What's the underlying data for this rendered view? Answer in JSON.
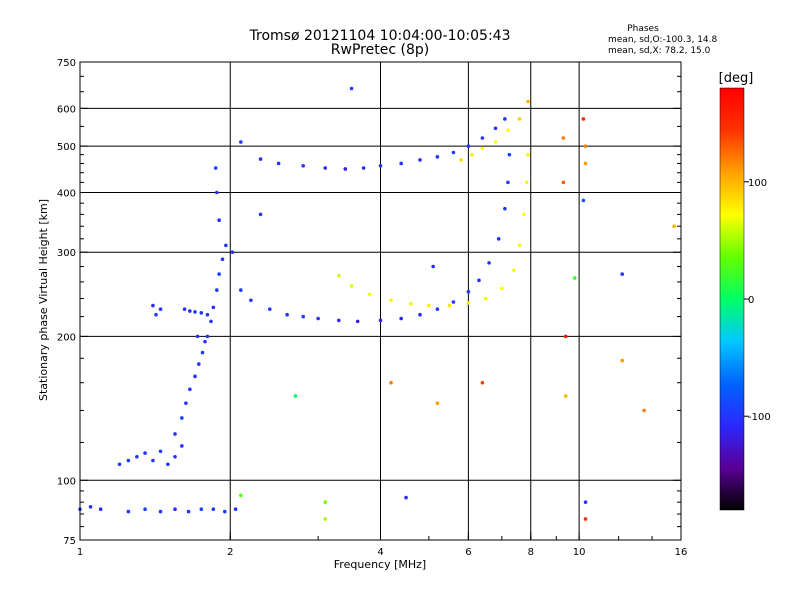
{
  "chart_data": {
    "type": "scatter",
    "title": "Tromsø 20121104 10:04:00-10:05:43",
    "subtitle": "RwPretec (8p)",
    "xlabel": "Frequency [MHz]",
    "ylabel": "Stationary phase Virtual Height [km]",
    "x_scale": "log",
    "y_scale": "log",
    "xlim": [
      1,
      16
    ],
    "ylim": [
      75,
      750
    ],
    "x_ticks": [
      1,
      2,
      4,
      6,
      8,
      10,
      16
    ],
    "x_tick_labels": [
      "1",
      "2",
      "4",
      "6",
      "8",
      "10",
      "16"
    ],
    "y_ticks": [
      75,
      100,
      200,
      300,
      400,
      500,
      600,
      750
    ],
    "y_tick_labels": [
      "75",
      "100",
      "200",
      "300",
      "400",
      "500",
      "600",
      "750"
    ],
    "grid": true,
    "phase_info": {
      "title": "Phases",
      "line1": "mean, sd,O:-100.3, 14.8",
      "line2": "mean, sd,X:  78.2, 15.0"
    },
    "colorbar": {
      "label": "[deg]",
      "range": [
        -180,
        180
      ],
      "ticks": [
        100,
        0,
        -100
      ],
      "tick_labels": [
        "100",
        "0",
        "-100"
      ],
      "colors": [
        "#000000",
        "#5a0096",
        "#2b28ff",
        "#0064ff",
        "#00c8ff",
        "#00ff64",
        "#64ff00",
        "#ffff00",
        "#ffa000",
        "#ff3200",
        "#ff0000"
      ]
    },
    "series": [
      {
        "points": [
          [
            1.0,
            87,
            -95
          ],
          [
            1.05,
            88,
            -100
          ],
          [
            1.1,
            87,
            -105
          ],
          [
            1.25,
            86,
            -100
          ],
          [
            1.35,
            87,
            -95
          ],
          [
            1.45,
            86,
            -100
          ],
          [
            1.55,
            87,
            -105
          ],
          [
            1.65,
            86,
            -100
          ],
          [
            1.75,
            87,
            -95
          ],
          [
            1.85,
            87,
            -100
          ],
          [
            1.95,
            86,
            -98
          ],
          [
            2.05,
            87,
            -102
          ],
          [
            1.2,
            108,
            -100
          ],
          [
            1.25,
            110,
            -95
          ],
          [
            1.3,
            112,
            -100
          ],
          [
            1.35,
            114,
            -105
          ],
          [
            1.4,
            110,
            -100
          ],
          [
            1.45,
            115,
            -95
          ],
          [
            1.5,
            108,
            -100
          ],
          [
            1.55,
            112,
            -100
          ],
          [
            1.6,
            118,
            -105
          ],
          [
            1.55,
            125,
            -100
          ],
          [
            1.6,
            135,
            -95
          ],
          [
            1.63,
            145,
            -100
          ],
          [
            1.66,
            155,
            -100
          ],
          [
            1.7,
            165,
            -105
          ],
          [
            1.73,
            175,
            -100
          ],
          [
            1.76,
            185,
            -95
          ],
          [
            1.8,
            200,
            -100
          ],
          [
            1.83,
            215,
            -100
          ],
          [
            1.85,
            230,
            -105
          ],
          [
            1.88,
            250,
            -100
          ],
          [
            1.9,
            270,
            -95
          ],
          [
            1.93,
            290,
            -100
          ],
          [
            1.96,
            310,
            -100
          ],
          [
            1.9,
            350,
            -105
          ],
          [
            1.88,
            400,
            -100
          ],
          [
            1.87,
            450,
            -95
          ],
          [
            1.62,
            228,
            -100
          ],
          [
            1.66,
            226,
            -105
          ],
          [
            1.7,
            225,
            -100
          ],
          [
            1.75,
            224,
            -100
          ],
          [
            1.8,
            222,
            -100
          ],
          [
            1.4,
            232,
            -105
          ],
          [
            1.45,
            228,
            -100
          ],
          [
            1.42,
            222,
            -95
          ],
          [
            1.72,
            200,
            -100
          ],
          [
            1.78,
            195,
            -105
          ],
          [
            2.02,
            300,
            -100
          ],
          [
            2.1,
            250,
            -100
          ],
          [
            2.2,
            238,
            -105
          ],
          [
            2.4,
            228,
            -100
          ],
          [
            2.6,
            222,
            -100
          ],
          [
            2.8,
            220,
            -95
          ],
          [
            3.0,
            218,
            -100
          ],
          [
            3.3,
            216,
            -110
          ],
          [
            3.6,
            215,
            -120
          ],
          [
            4.0,
            216,
            -115
          ],
          [
            4.4,
            218,
            -110
          ],
          [
            4.8,
            222,
            -105
          ],
          [
            5.2,
            228,
            -100
          ],
          [
            5.6,
            236,
            -100
          ],
          [
            6.0,
            248,
            -95
          ],
          [
            6.3,
            262,
            -100
          ],
          [
            6.6,
            285,
            -100
          ],
          [
            6.9,
            320,
            -105
          ],
          [
            7.1,
            370,
            -100
          ],
          [
            7.2,
            420,
            -100
          ],
          [
            7.25,
            480,
            -95
          ],
          [
            2.1,
            510,
            -100
          ],
          [
            2.3,
            470,
            -105
          ],
          [
            2.5,
            460,
            -100
          ],
          [
            2.8,
            455,
            -100
          ],
          [
            3.1,
            450,
            -110
          ],
          [
            3.4,
            448,
            -115
          ],
          [
            3.7,
            450,
            -110
          ],
          [
            4.0,
            455,
            -100
          ],
          [
            4.4,
            460,
            -100
          ],
          [
            4.8,
            468,
            -105
          ],
          [
            5.2,
            475,
            -100
          ],
          [
            5.6,
            485,
            -95
          ],
          [
            6.0,
            500,
            -100
          ],
          [
            6.4,
            520,
            -100
          ],
          [
            6.8,
            545,
            -105
          ],
          [
            7.1,
            570,
            -100
          ],
          [
            3.5,
            660,
            -100
          ],
          [
            2.3,
            360,
            -100
          ],
          [
            5.1,
            280,
            -105
          ],
          [
            10.3,
            90,
            -105
          ],
          [
            4.5,
            92,
            -105
          ]
        ]
      },
      {
        "points": [
          [
            3.3,
            268,
            60
          ],
          [
            3.5,
            255,
            65
          ],
          [
            3.8,
            245,
            70
          ],
          [
            4.2,
            238,
            75
          ],
          [
            4.6,
            234,
            78
          ],
          [
            5.0,
            232,
            80
          ],
          [
            5.5,
            232,
            80
          ],
          [
            6.0,
            235,
            78
          ],
          [
            6.5,
            240,
            75
          ],
          [
            7.0,
            252,
            72
          ],
          [
            7.4,
            275,
            70
          ],
          [
            7.6,
            310,
            68
          ],
          [
            7.75,
            360,
            72
          ],
          [
            7.85,
            420,
            75
          ],
          [
            7.9,
            480,
            78
          ],
          [
            5.8,
            468,
            85
          ],
          [
            6.1,
            480,
            80
          ],
          [
            6.4,
            495,
            75
          ],
          [
            6.8,
            510,
            70
          ],
          [
            7.2,
            540,
            72
          ],
          [
            7.6,
            570,
            90
          ],
          [
            7.9,
            620,
            100
          ],
          [
            9.3,
            520,
            120
          ],
          [
            9.3,
            420,
            130
          ],
          [
            10.3,
            500,
            120
          ],
          [
            10.3,
            460,
            110
          ],
          [
            10.2,
            570,
            150
          ],
          [
            10.2,
            385,
            -80
          ],
          [
            12.2,
            270,
            -100
          ],
          [
            9.8,
            265,
            20
          ],
          [
            9.4,
            200,
            170
          ],
          [
            9.4,
            150,
            100
          ],
          [
            12.2,
            178,
            110
          ],
          [
            13.5,
            140,
            120
          ],
          [
            4.2,
            160,
            120
          ],
          [
            5.2,
            145,
            110
          ],
          [
            6.4,
            160,
            140
          ],
          [
            3.1,
            90,
            40
          ],
          [
            3.1,
            83,
            50
          ],
          [
            2.1,
            93,
            30
          ],
          [
            2.7,
            150,
            0
          ],
          [
            10.3,
            83,
            150
          ],
          [
            15.5,
            340,
            100
          ]
        ]
      }
    ]
  }
}
